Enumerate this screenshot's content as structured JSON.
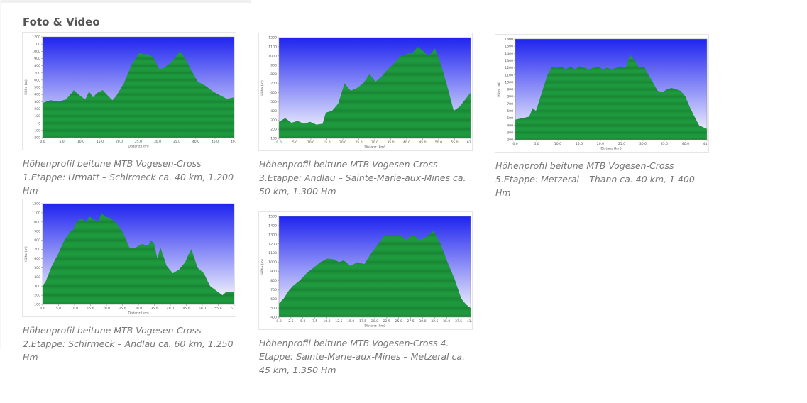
{
  "section": {
    "title": "Foto & Video"
  },
  "colors": {
    "sky_top": "#1f24ef",
    "sky_bottom": "#ffffff",
    "terrain": "#1e9a3e",
    "terrain_dark": "#15702b"
  },
  "chart_data": [
    {
      "type": "area",
      "caption": "Höhenprofil beitune MTB Vogesen-Cross 1.Etappe: Urmatt – Schirmeck ca. 40 km, 1.200 Hm",
      "xlabel": "Distanz  (km)",
      "ylabel": "Höhe (m)",
      "xlim": [
        0,
        49.4
      ],
      "ylim": [
        -200,
        1200
      ],
      "xticks": [
        "0.0",
        "5.0",
        "10.0",
        "15.0",
        "20.0",
        "25.0",
        "30.0",
        "35.0",
        "40.0",
        "45.0",
        "49.4"
      ],
      "yticks": [
        "-200",
        "-100",
        "0",
        "100",
        "200",
        "300",
        "400",
        "500",
        "600",
        "700",
        "800",
        "900",
        "1000",
        "1100",
        "1200"
      ],
      "series": [
        {
          "x": [
            0,
            2,
            4,
            6,
            7.5,
            8,
            9.5,
            11,
            12,
            13,
            14,
            15.5,
            16.5,
            18,
            19,
            21,
            23,
            25,
            26,
            27,
            28.5,
            30,
            31,
            33,
            35.5,
            37,
            38.5,
            40,
            42,
            44,
            46,
            47.5,
            49.4
          ],
          "y": [
            280,
            320,
            300,
            330,
            420,
            460,
            390,
            330,
            440,
            360,
            420,
            460,
            400,
            320,
            380,
            560,
            820,
            980,
            960,
            960,
            920,
            760,
            760,
            840,
            1000,
            880,
            720,
            580,
            520,
            440,
            380,
            340,
            360
          ]
        }
      ]
    },
    {
      "type": "area",
      "caption": "Höhenprofil beitune MTB Vogesen-Cross 3.Etappe: Andlau – Sainte-Marie-aux-Mines ca. 50 km, 1.300 Hm",
      "xlabel": "Distanz  (km)",
      "ylabel": "Höhe (m)",
      "xlim": [
        0,
        61.4
      ],
      "ylim": [
        100,
        1200
      ],
      "xticks": [
        "0.0",
        "5.0",
        "10.0",
        "15.0",
        "20.0",
        "25.0",
        "30.0",
        "35.0",
        "40.0",
        "45.0",
        "50.0",
        "55.0",
        "61.4"
      ],
      "yticks": [
        "100",
        "200",
        "300",
        "400",
        "500",
        "600",
        "700",
        "800",
        "900",
        "1000",
        "1100",
        "1200"
      ],
      "series": [
        {
          "x": [
            0,
            2,
            4,
            6,
            8,
            10,
            12,
            14,
            15,
            17,
            19,
            21,
            23,
            25,
            27,
            29,
            31,
            33,
            35,
            37,
            39,
            41,
            43,
            44.5,
            46,
            48,
            50,
            52,
            54,
            56,
            58,
            61.4
          ],
          "y": [
            280,
            320,
            270,
            290,
            260,
            280,
            250,
            260,
            380,
            400,
            480,
            700,
            620,
            650,
            700,
            800,
            720,
            780,
            860,
            920,
            1000,
            1020,
            1040,
            1100,
            1060,
            1000,
            1080,
            900,
            660,
            400,
            450,
            600
          ]
        }
      ]
    },
    {
      "type": "area",
      "caption": "Höhenprofil beitune MTB Vogesen-Cross 5.Etappe: Metzeral – Thann ca. 40 km, 1.400 Hm",
      "xlabel": "Distanz  (km)",
      "ylabel": "Höhe (m)",
      "xlim": [
        0,
        41.7
      ],
      "ylim": [
        200,
        1600
      ],
      "xticks": [
        "0.0",
        "5.0",
        "10.0",
        "15.0",
        "20.0",
        "25.0",
        "30.0",
        "35.0",
        "40.0",
        "41.7"
      ],
      "yticks": [
        "200",
        "300",
        "400",
        "500",
        "600",
        "700",
        "800",
        "900",
        "1000",
        "1100",
        "1200",
        "1300",
        "1400",
        "1500",
        "1600"
      ],
      "series": [
        {
          "x": [
            0,
            1.5,
            3,
            3.8,
            4.5,
            5.5,
            7,
            8,
            9,
            10,
            11,
            12,
            13,
            14,
            15,
            16,
            17,
            18,
            19,
            20,
            21,
            22,
            23,
            24,
            25,
            26,
            27,
            28,
            29,
            31,
            32,
            33,
            34,
            35,
            36,
            37,
            38,
            39,
            40,
            41.7
          ],
          "y": [
            480,
            500,
            520,
            640,
            600,
            800,
            1100,
            1220,
            1200,
            1220,
            1180,
            1220,
            1180,
            1220,
            1200,
            1180,
            1200,
            1220,
            1180,
            1200,
            1180,
            1200,
            1220,
            1200,
            1380,
            1300,
            1200,
            1220,
            1100,
            880,
            860,
            900,
            920,
            900,
            880,
            800,
            650,
            520,
            400,
            350
          ]
        }
      ]
    },
    {
      "type": "area",
      "caption": "Höhenprofil beitune MTB Vogesen-Cross 2.Etappe: Schirmeck – Andlau ca. 60 km, 1.250 Hm",
      "xlabel": "Distanz  (km)",
      "ylabel": "Höhe (m)",
      "xlim": [
        0,
        61.8
      ],
      "ylim": [
        100,
        1200
      ],
      "xticks": [
        "0.0",
        "5.0",
        "10.0",
        "15.0",
        "20.0",
        "25.0",
        "30.0",
        "35.0",
        "40.0",
        "45.0",
        "50.0",
        "55.0",
        "61.8"
      ],
      "yticks": [
        "100",
        "200",
        "300",
        "400",
        "500",
        "600",
        "700",
        "800",
        "900",
        "1000",
        "1100",
        "1200"
      ],
      "series": [
        {
          "x": [
            0,
            1,
            3,
            5,
            7,
            9,
            10,
            11,
            12.5,
            14,
            15,
            16,
            18,
            19,
            20,
            22,
            24,
            26,
            28,
            30,
            32,
            34,
            35,
            36,
            37,
            38,
            40,
            42,
            44,
            45,
            46,
            47,
            48,
            50,
            52,
            54,
            56,
            58,
            59,
            61.8
          ],
          "y": [
            300,
            350,
            520,
            650,
            800,
            900,
            920,
            1000,
            1040,
            1000,
            1060,
            1040,
            1000,
            1100,
            1060,
            1040,
            980,
            880,
            720,
            720,
            760,
            740,
            800,
            760,
            600,
            720,
            520,
            440,
            480,
            520,
            560,
            640,
            700,
            500,
            440,
            300,
            250,
            200,
            230,
            240
          ]
        }
      ]
    },
    {
      "type": "area",
      "caption": "Höhenprofil beitune MTB Vogesen-Cross 4. Etappe: Sainte-Marie-aux-Mines – Metzeral ca. 45 km, 1.350 Hm",
      "xlabel": "Distanz  (km)",
      "ylabel": "Höhe (m)",
      "xlim": [
        0,
        41.5
      ],
      "ylim": [
        400,
        1500
      ],
      "xticks": [
        "0.0",
        "2.5",
        "5.0",
        "7.5",
        "10.0",
        "12.5",
        "15.0",
        "17.5",
        "20.0",
        "22.5",
        "25.0",
        "27.5",
        "30.0",
        "32.5",
        "35.0",
        "37.5",
        "41.5"
      ],
      "yticks": [
        "400",
        "500",
        "600",
        "700",
        "800",
        "900",
        "1000",
        "1100",
        "1200",
        "1300",
        "1400",
        "1500"
      ],
      "series": [
        {
          "x": [
            0,
            1,
            2,
            3,
            4.5,
            6,
            7.5,
            9,
            10.5,
            12,
            13,
            14,
            15.5,
            17,
            18.5,
            20,
            21.5,
            23,
            24.5,
            26,
            27.5,
            29,
            30.5,
            32,
            33.5,
            35,
            36.5,
            38,
            39.5,
            40.5,
            41.5
          ],
          "y": [
            550,
            600,
            680,
            740,
            800,
            880,
            940,
            1000,
            1040,
            1030,
            1000,
            1020,
            960,
            1000,
            980,
            1100,
            1200,
            1300,
            1280,
            1300,
            1240,
            1300,
            1240,
            1280,
            1340,
            1200,
            1000,
            820,
            600,
            540,
            500
          ]
        }
      ]
    }
  ]
}
